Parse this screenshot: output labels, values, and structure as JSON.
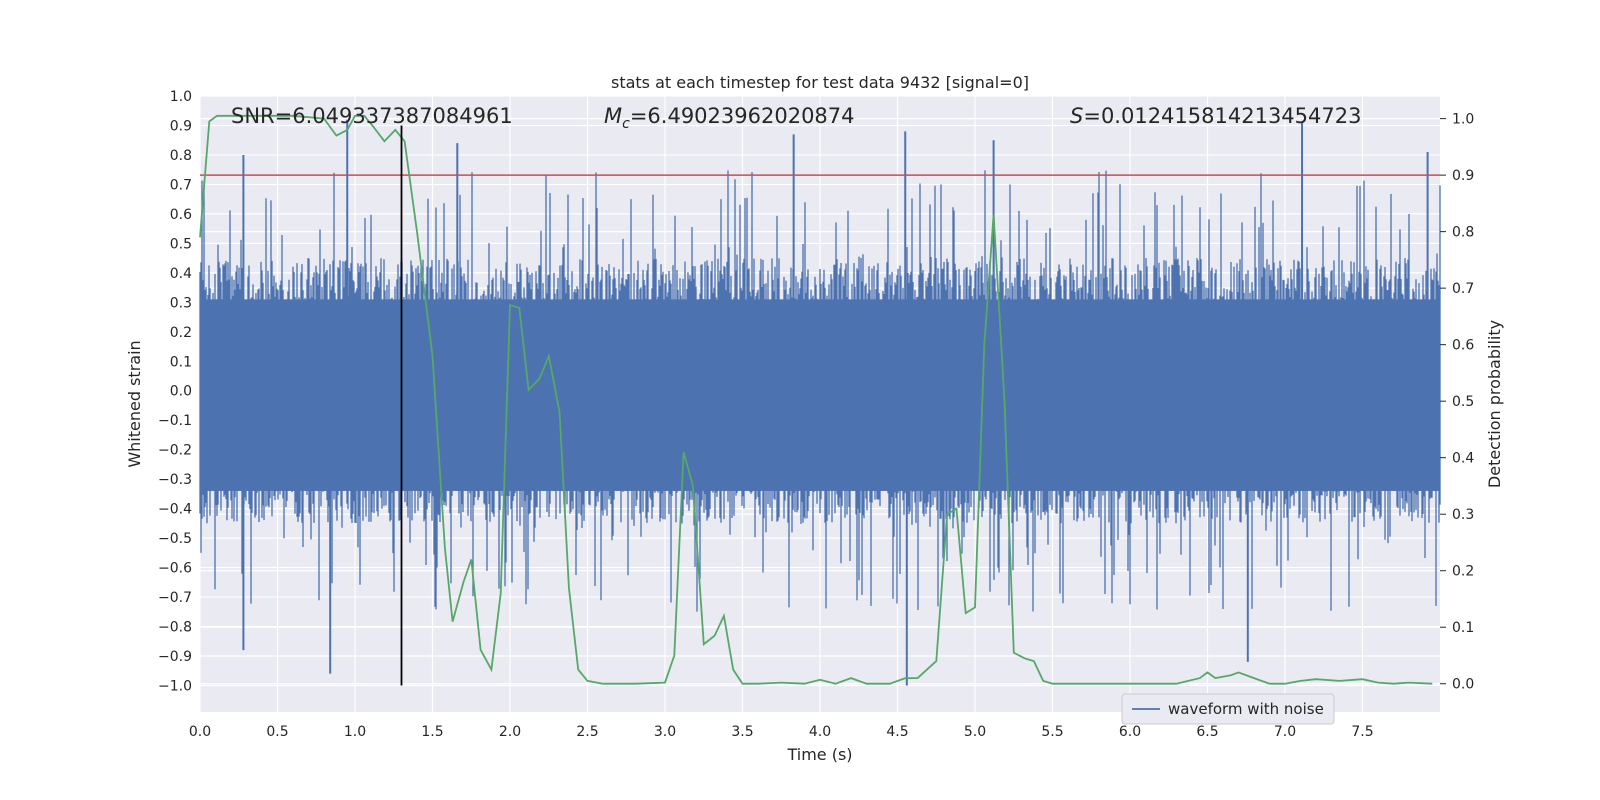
{
  "chart_data": {
    "type": "line",
    "title": "stats at each timestep for test data 9432 [signal=0]",
    "xlabel": "Time (s)",
    "ylabel": "Whitened strain",
    "y2label": "Detection probability",
    "xlim": [
      0,
      8.0
    ],
    "ylim": [
      -1.09,
      1.0
    ],
    "y2lim": [
      -0.05,
      1.04
    ],
    "xticks": [
      "0.0",
      "0.5",
      "1.0",
      "1.5",
      "2.0",
      "2.5",
      "3.0",
      "3.5",
      "4.0",
      "4.5",
      "5.0",
      "5.5",
      "6.0",
      "6.5",
      "7.0",
      "7.5"
    ],
    "yticks": [
      "1.0",
      "0.9",
      "0.8",
      "0.7",
      "0.6",
      "0.5",
      "0.4",
      "0.3",
      "0.2",
      "0.1",
      "0.0",
      "−0.1",
      "−0.2",
      "−0.3",
      "−0.4",
      "−0.5",
      "−0.6",
      "−0.7",
      "−0.8",
      "−0.9",
      "−1.0"
    ],
    "y2ticks": [
      "1.0",
      "0.9",
      "0.8",
      "0.7",
      "0.6",
      "0.5",
      "0.4",
      "0.3",
      "0.2",
      "0.1",
      "0.0"
    ],
    "annotations": {
      "snr": "SNR=6.049337387084961",
      "mc_symbol": "M",
      "mc_sub": "c",
      "mc_value": "=6.49023962020874",
      "s_symbol": "S",
      "s_value": "=0.012415814213454723"
    },
    "threshold": {
      "axis": "right",
      "value": 0.9,
      "color": "#c44e52"
    },
    "marker_line": {
      "x": 1.3,
      "color": "#000000"
    },
    "series": [
      {
        "name": "waveform with noise",
        "axis": "left",
        "color": "#4c72b0",
        "kind": "noise",
        "approx_amplitude": 0.45,
        "spike_peaks": [
          {
            "x": 0.28,
            "y": 0.8
          },
          {
            "x": 0.28,
            "y": -0.88
          },
          {
            "x": 0.84,
            "y": -0.96
          },
          {
            "x": 0.95,
            "y": 0.92
          },
          {
            "x": 1.66,
            "y": 0.84
          },
          {
            "x": 3.83,
            "y": 0.87
          },
          {
            "x": 4.55,
            "y": 0.88
          },
          {
            "x": 4.56,
            "y": -1.0
          },
          {
            "x": 5.12,
            "y": 0.85
          },
          {
            "x": 6.76,
            "y": -0.92
          },
          {
            "x": 7.11,
            "y": 0.91
          },
          {
            "x": 7.92,
            "y": 0.81
          }
        ]
      },
      {
        "name": "detection probability",
        "axis": "right",
        "color": "#55a868",
        "x": [
          0.0,
          0.06,
          0.11,
          0.2,
          0.4,
          0.6,
          0.8,
          0.88,
          0.95,
          1.0,
          1.06,
          1.12,
          1.19,
          1.26,
          1.32,
          1.4,
          1.5,
          1.58,
          1.63,
          1.7,
          1.75,
          1.81,
          1.88,
          1.94,
          2.0,
          2.06,
          2.12,
          2.19,
          2.25,
          2.32,
          2.38,
          2.44,
          2.5,
          2.6,
          2.8,
          3.0,
          3.06,
          3.12,
          3.18,
          3.25,
          3.32,
          3.38,
          3.44,
          3.5,
          3.6,
          3.75,
          3.9,
          4.0,
          4.1,
          4.2,
          4.3,
          4.45,
          4.55,
          4.63,
          4.75,
          4.82,
          4.88,
          4.94,
          5.0,
          5.06,
          5.12,
          5.19,
          5.25,
          5.32,
          5.38,
          5.44,
          5.5,
          5.7,
          6.0,
          6.3,
          6.45,
          6.5,
          6.55,
          6.65,
          6.7,
          6.8,
          6.9,
          7.0,
          7.1,
          7.2,
          7.35,
          7.5,
          7.6,
          7.7,
          7.8,
          7.95
        ],
        "y": [
          0.79,
          0.995,
          1.005,
          1.005,
          1.005,
          1.005,
          1.0,
          0.97,
          0.98,
          1.005,
          1.005,
          0.985,
          0.96,
          0.98,
          0.96,
          0.8,
          0.58,
          0.24,
          0.11,
          0.18,
          0.22,
          0.06,
          0.025,
          0.16,
          0.67,
          0.665,
          0.52,
          0.54,
          0.58,
          0.48,
          0.17,
          0.025,
          0.005,
          0.0,
          0.0,
          0.002,
          0.05,
          0.41,
          0.35,
          0.07,
          0.085,
          0.12,
          0.025,
          0.0,
          0.0,
          0.002,
          0.0,
          0.007,
          0.0,
          0.01,
          0.0,
          0.0,
          0.01,
          0.01,
          0.04,
          0.3,
          0.31,
          0.125,
          0.135,
          0.6,
          0.83,
          0.5,
          0.055,
          0.045,
          0.04,
          0.005,
          0.0,
          0.0,
          0.0,
          0.0,
          0.01,
          0.02,
          0.01,
          0.015,
          0.02,
          0.01,
          0.0,
          0.0,
          0.005,
          0.008,
          0.005,
          0.008,
          0.002,
          0.0,
          0.002,
          0.0
        ]
      }
    ],
    "legend": {
      "location": "lower-right",
      "label": "waveform with noise"
    }
  }
}
